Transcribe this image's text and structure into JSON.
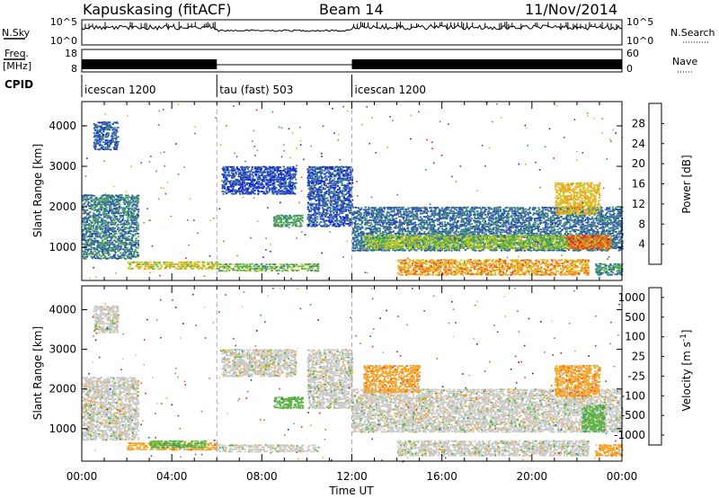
{
  "header": {
    "station": "Kapuskasing (fitACF)",
    "beam": "Beam 14",
    "date": "11/Nov/2014"
  },
  "strips": {
    "nsky_label": "N.Sky",
    "nsky_ticks": [
      "10^5",
      "10^0"
    ],
    "nsearch_label": "N.Search",
    "nsearch_ticks": [
      "10^5",
      "10^0"
    ],
    "freq_label": "Freq.",
    "freq_unit": "[MHz]",
    "freq_ticks": [
      "18",
      "8"
    ],
    "nave_label": "Nave",
    "nave_ticks": [
      "60",
      "0"
    ],
    "cpid_label": "CPID"
  },
  "modes": [
    {
      "name": "icescan 1200",
      "start_hour": 0,
      "end_hour": 6
    },
    {
      "name": "tau (fast) 503",
      "start_hour": 6,
      "end_hour": 12
    },
    {
      "name": "icescan 1200",
      "start_hour": 12,
      "end_hour": 24
    }
  ],
  "chart_data": [
    {
      "type": "heatmap",
      "title": "",
      "ylabel": "Slant Range [km]",
      "xlabel": "",
      "x_range_hours": [
        0,
        24
      ],
      "ylim": [
        180,
        4600
      ],
      "y_ticks": [
        1000,
        2000,
        3000,
        4000
      ],
      "colorbar_label": "Power [dB]",
      "colorbar_ticks": [
        4,
        8,
        12,
        16,
        20,
        24,
        28
      ],
      "colorbar_range": [
        0,
        32
      ],
      "colors": [
        "#0b1ee0",
        "#2a4fb0",
        "#3a8a7c",
        "#56b43c",
        "#c8c81e",
        "#f5a21e",
        "#ee5a14",
        "#e61e1e"
      ],
      "echo_regions": [
        {
          "t0": 0.0,
          "t1": 2.5,
          "r0": 700,
          "r1": 2300,
          "value": 9
        },
        {
          "t0": 0.5,
          "t1": 1.6,
          "r0": 3400,
          "r1": 4100,
          "value": 7
        },
        {
          "t0": 2.0,
          "t1": 6.0,
          "r0": 450,
          "r1": 650,
          "value": 18
        },
        {
          "t0": 6.0,
          "t1": 10.5,
          "r0": 400,
          "r1": 600,
          "value": 14
        },
        {
          "t0": 6.2,
          "t1": 9.5,
          "r0": 2300,
          "r1": 3000,
          "value": 5
        },
        {
          "t0": 8.5,
          "t1": 9.8,
          "r0": 1500,
          "r1": 1800,
          "value": 12
        },
        {
          "t0": 10.0,
          "t1": 12.0,
          "r0": 1500,
          "r1": 3000,
          "value": 6
        },
        {
          "t0": 12.0,
          "t1": 24.0,
          "r0": 900,
          "r1": 2000,
          "value": 8
        },
        {
          "t0": 12.5,
          "t1": 23.5,
          "r0": 950,
          "r1": 1300,
          "value": 16
        },
        {
          "t0": 14.0,
          "t1": 22.5,
          "r0": 300,
          "r1": 700,
          "value": 22
        },
        {
          "t0": 21.5,
          "t1": 23.5,
          "r0": 950,
          "r1": 1300,
          "value": 26
        },
        {
          "t0": 21.0,
          "t1": 23.0,
          "r0": 1800,
          "r1": 2600,
          "value": 20
        },
        {
          "t0": 22.8,
          "t1": 24.0,
          "r0": 300,
          "r1": 600,
          "value": 10
        }
      ]
    },
    {
      "type": "heatmap",
      "title": "",
      "ylabel": "Slant Range [km]",
      "xlabel": "Time UT",
      "x_range_hours": [
        0,
        24
      ],
      "x_ticks": [
        "00:00",
        "04:00",
        "08:00",
        "12:00",
        "16:00",
        "20:00",
        "00:00"
      ],
      "ylim": [
        180,
        4600
      ],
      "y_ticks": [
        1000,
        2000,
        3000,
        4000
      ],
      "colorbar_label": "Velocity [m s^-1]",
      "colorbar_ticks": [
        "1000",
        "500",
        "100",
        "25",
        "-25",
        "-100",
        "-500",
        "-1000"
      ],
      "colors": [
        "#0b1ee0",
        "#2a4fb0",
        "#3a8a7c",
        "#56b43c",
        "#c8c8c8",
        "#f5a21e",
        "#ee5a14",
        "#e61e1e"
      ],
      "echo_regions": [
        {
          "t0": 0.0,
          "t1": 2.5,
          "r0": 700,
          "r1": 2300,
          "value": 4
        },
        {
          "t0": 0.5,
          "t1": 1.6,
          "r0": 3400,
          "r1": 4100,
          "value": 4
        },
        {
          "t0": 2.0,
          "t1": 6.0,
          "r0": 450,
          "r1": 650,
          "value": 5
        },
        {
          "t0": 3.0,
          "t1": 5.5,
          "r0": 500,
          "r1": 700,
          "value": 3
        },
        {
          "t0": 6.0,
          "t1": 10.5,
          "r0": 400,
          "r1": 600,
          "value": 4
        },
        {
          "t0": 6.2,
          "t1": 9.5,
          "r0": 2300,
          "r1": 3000,
          "value": 4
        },
        {
          "t0": 8.5,
          "t1": 9.8,
          "r0": 1500,
          "r1": 1800,
          "value": 3
        },
        {
          "t0": 10.0,
          "t1": 12.0,
          "r0": 1500,
          "r1": 3000,
          "value": 4
        },
        {
          "t0": 12.0,
          "t1": 24.0,
          "r0": 900,
          "r1": 2000,
          "value": 4
        },
        {
          "t0": 14.0,
          "t1": 22.5,
          "r0": 300,
          "r1": 700,
          "value": 4
        },
        {
          "t0": 12.5,
          "t1": 15.0,
          "r0": 1900,
          "r1": 2600,
          "value": 5
        },
        {
          "t0": 21.0,
          "t1": 23.0,
          "r0": 1800,
          "r1": 2600,
          "value": 5
        },
        {
          "t0": 22.2,
          "t1": 23.2,
          "r0": 900,
          "r1": 1600,
          "value": 3
        },
        {
          "t0": 22.8,
          "t1": 24.0,
          "r0": 300,
          "r1": 600,
          "value": 5
        }
      ]
    }
  ]
}
